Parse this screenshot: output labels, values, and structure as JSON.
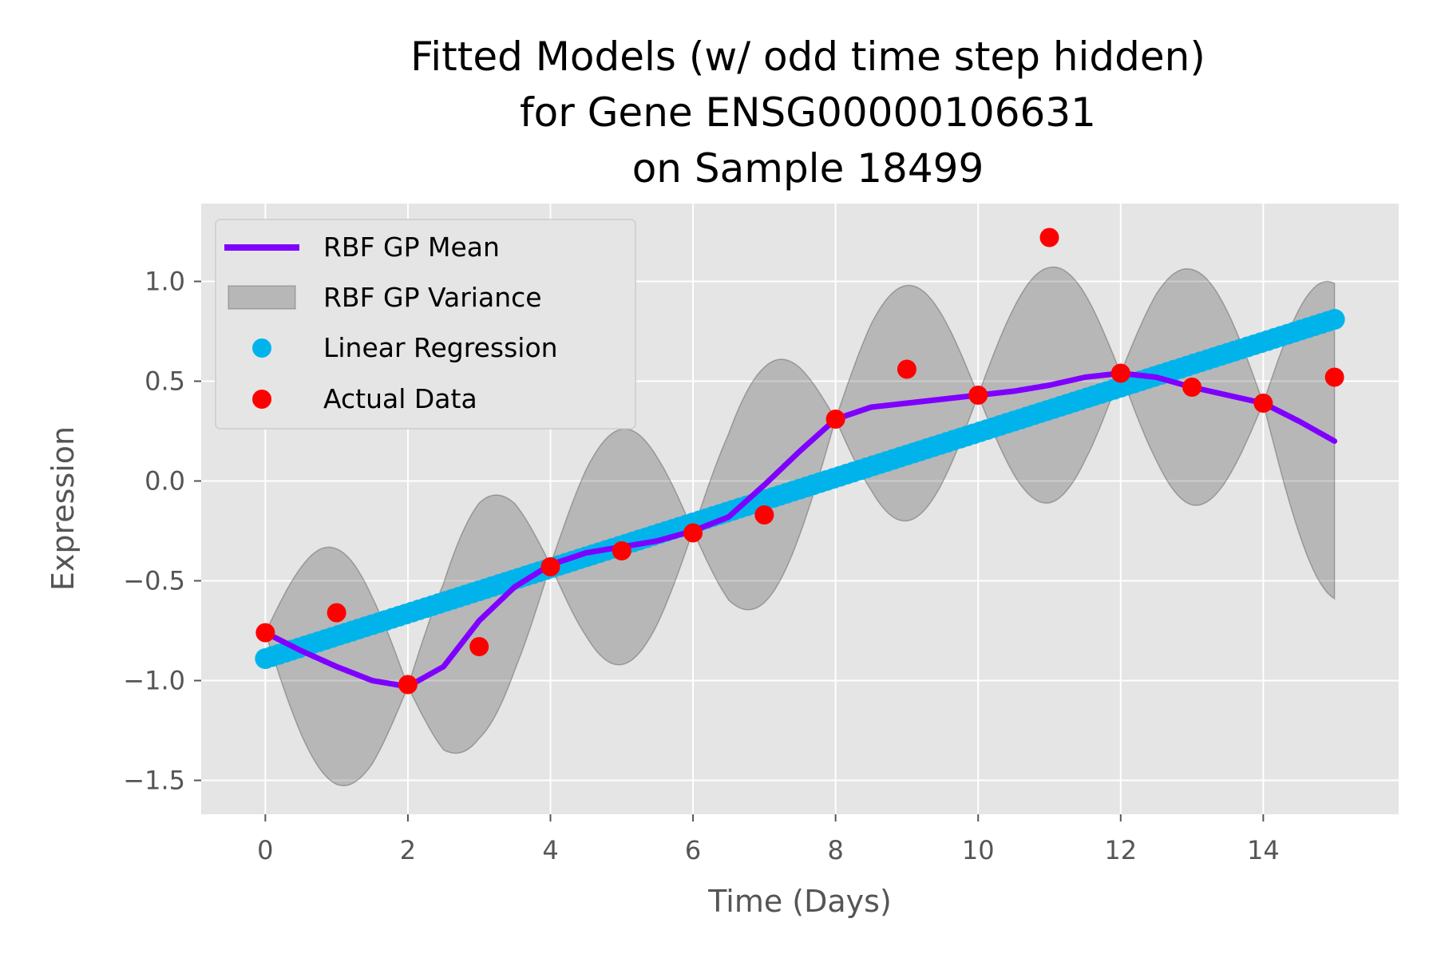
{
  "chart_data": {
    "type": "line",
    "title": [
      "Fitted Models (w/ odd time step hidden)",
      "for Gene ENSG00000106631",
      "on Sample 18499"
    ],
    "xlabel": "Time (Days)",
    "ylabel": "Expression",
    "xlim": [
      -0.9,
      15.9
    ],
    "ylim": [
      -1.67,
      1.39
    ],
    "xticks": [
      0,
      2,
      4,
      6,
      8,
      10,
      12,
      14
    ],
    "xtick_labels": [
      "0",
      "2",
      "4",
      "6",
      "8",
      "10",
      "12",
      "14"
    ],
    "yticks": [
      1.0,
      0.5,
      0.0,
      -0.5,
      -1.0,
      -1.5
    ],
    "ytick_labels": [
      "1.0",
      "0.5",
      "0.0",
      "−0.5",
      "−1.0",
      "−1.5"
    ],
    "grid": true,
    "legend_position": "top-left",
    "legend": [
      "RBF GP Mean",
      "RBF GP Variance",
      "Linear Regression",
      "Actual Data"
    ],
    "colors": {
      "gp_mean": "#7f00ff",
      "gp_variance": "#000000",
      "linear_regression": "#00b4eb",
      "actual_data": "#ff0000",
      "axes_background": "#e5e5e5",
      "grid": "#ffffff"
    },
    "series": [
      {
        "name": "RBF GP Mean",
        "kind": "line",
        "x": [
          0,
          0.5,
          1,
          1.5,
          2,
          2.5,
          3,
          3.5,
          4,
          4.5,
          5,
          5.5,
          6,
          6.5,
          7,
          7.5,
          8,
          8.5,
          9,
          9.5,
          10,
          10.5,
          11,
          11.5,
          12,
          12.5,
          13,
          13.5,
          14,
          14.5,
          15
        ],
        "y": [
          -0.76,
          -0.85,
          -0.93,
          -1.0,
          -1.03,
          -0.93,
          -0.7,
          -0.53,
          -0.42,
          -0.36,
          -0.33,
          -0.3,
          -0.25,
          -0.18,
          -0.02,
          0.15,
          0.31,
          0.37,
          0.39,
          0.41,
          0.43,
          0.45,
          0.48,
          0.52,
          0.54,
          0.52,
          0.47,
          0.43,
          0.39,
          0.3,
          0.2
        ]
      },
      {
        "name": "RBF GP Variance",
        "kind": "band",
        "centers": [
          0,
          2,
          4,
          6,
          8,
          10,
          12,
          14
        ],
        "half_widths": [
          0.59,
          0.59,
          0.59,
          0.59,
          0.59,
          0.59,
          0.59
        ],
        "tail_half_width": 0.79
      },
      {
        "name": "Linear Regression",
        "kind": "scatter",
        "x_range": [
          0,
          15
        ],
        "y_range": [
          -0.89,
          0.81
        ]
      },
      {
        "name": "Actual Data",
        "kind": "scatter",
        "x": [
          0,
          1,
          2,
          3,
          4,
          5,
          6,
          7,
          8,
          9,
          10,
          11,
          12,
          13,
          14,
          15
        ],
        "y": [
          -0.76,
          -0.66,
          -1.02,
          -0.83,
          -0.43,
          -0.35,
          -0.26,
          -0.17,
          0.31,
          0.56,
          0.43,
          1.22,
          0.54,
          0.47,
          0.39,
          0.52
        ]
      }
    ]
  }
}
